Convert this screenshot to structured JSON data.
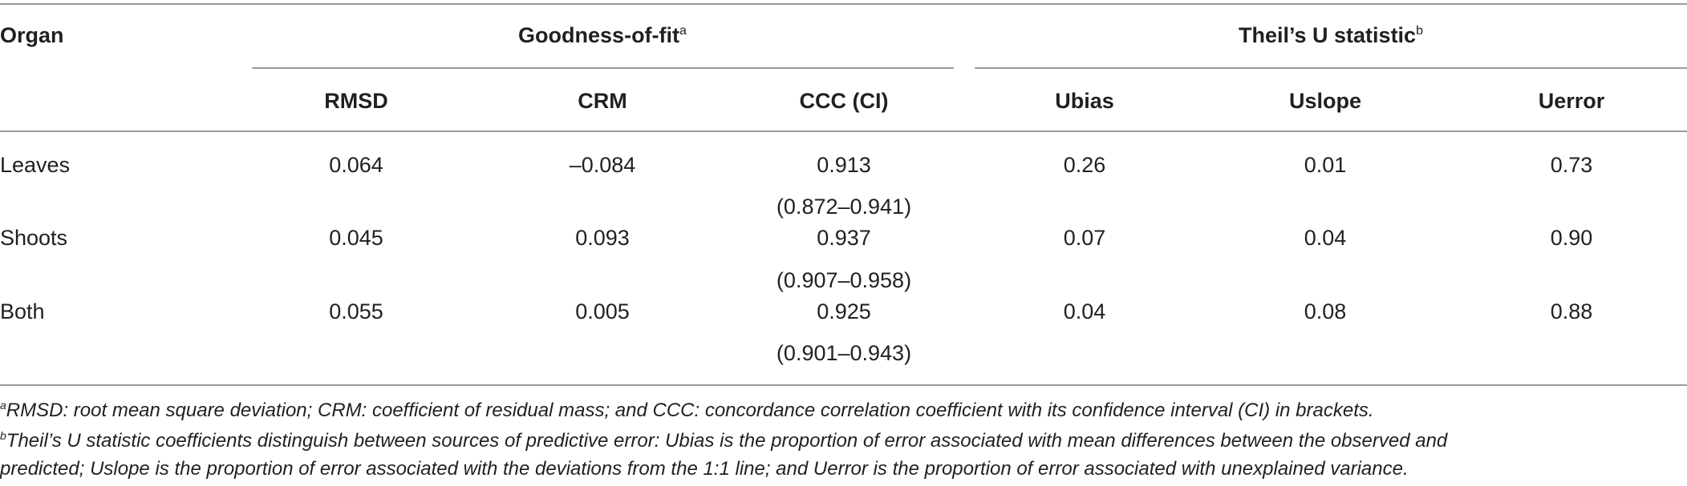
{
  "table": {
    "header": {
      "organ": "Organ",
      "group1": "Goodness-of-fit",
      "group1_mark": "a",
      "group2": "Theil’s U statistic",
      "group2_mark": "b",
      "columns": [
        "RMSD",
        "CRM",
        "CCC (CI)",
        "Ubias",
        "Uslope",
        "Uerror"
      ]
    },
    "rows": [
      {
        "organ": "Leaves",
        "rmsd": "0.064",
        "crm": "–0.084",
        "ccc": "0.913",
        "ci": "(0.872–0.941)",
        "ubias": "0.26",
        "uslope": "0.01",
        "uerror": "0.73"
      },
      {
        "organ": "Shoots",
        "rmsd": "0.045",
        "crm": "0.093",
        "ccc": "0.937",
        "ci": "(0.907–0.958)",
        "ubias": "0.07",
        "uslope": "0.04",
        "uerror": "0.90"
      },
      {
        "organ": "Both",
        "rmsd": "0.055",
        "crm": "0.005",
        "ccc": "0.925",
        "ci": "(0.901–0.943)",
        "ubias": "0.04",
        "uslope": "0.08",
        "uerror": "0.88"
      }
    ]
  },
  "footnotes": [
    {
      "mark": "a",
      "lines": [
        "RMSD: root mean square deviation; CRM: coefficient of residual mass; and CCC: concordance correlation coefficient with its confidence interval (CI) in brackets."
      ]
    },
    {
      "mark": "b",
      "lines": [
        "Theil’s U statistic coefficients distinguish between sources of predictive error: Ubias is the proportion of error associated with mean differences between the observed and",
        "predicted; Uslope is the proportion of error associated with the deviations from the 1:1 line; and Uerror is the proportion of error associated with unexplained variance."
      ]
    }
  ]
}
